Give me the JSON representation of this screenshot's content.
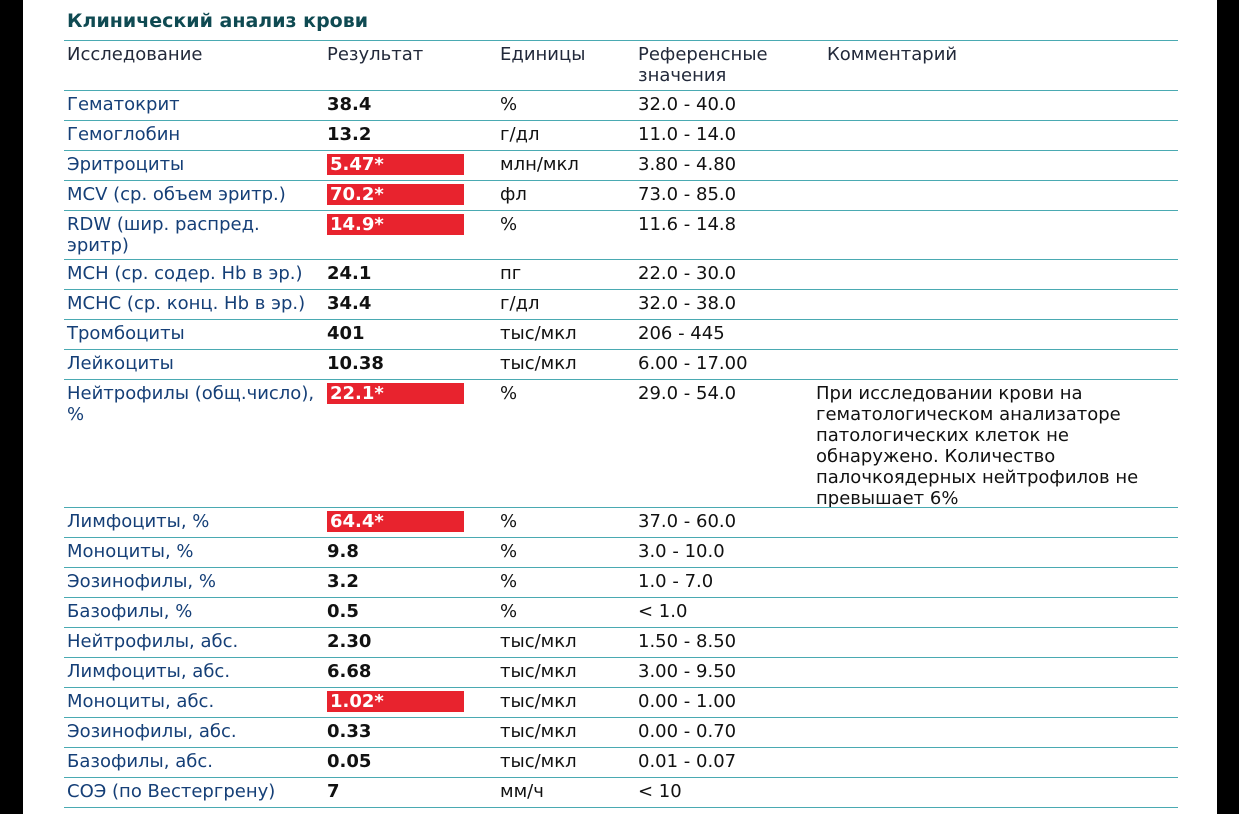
{
  "title": "Клинический анализ крови",
  "headers": {
    "name": "Исследование",
    "result": "Результат",
    "units": "Единицы",
    "ref": "Референсные значения",
    "comment": "Комментарий"
  },
  "rows": [
    {
      "name": "Гематокрит",
      "result": "38.4",
      "units": "%",
      "ref": "32.0 - 40.0",
      "comment": "",
      "flag": false
    },
    {
      "name": "Гемоглобин",
      "result": "13.2",
      "units": "г/дл",
      "ref": "11.0 - 14.0",
      "comment": "",
      "flag": false
    },
    {
      "name": "Эритроциты",
      "result": "5.47*",
      "units": "млн/мкл",
      "ref": "3.80 - 4.80",
      "comment": "",
      "flag": true
    },
    {
      "name": "MCV (ср. объем эритр.)",
      "result": "70.2*",
      "units": "фл",
      "ref": "73.0 - 85.0",
      "comment": "",
      "flag": true
    },
    {
      "name": "RDW (шир. распред. эритр)",
      "result": "14.9*",
      "units": "%",
      "ref": "11.6 - 14.8",
      "comment": "",
      "flag": true
    },
    {
      "name": "MCH (ср. содер. Hb в эр.)",
      "result": "24.1",
      "units": "пг",
      "ref": "22.0 - 30.0",
      "comment": "",
      "flag": false
    },
    {
      "name": "МСНС (ср. конц. Hb в эр.)",
      "result": "34.4",
      "units": "г/дл",
      "ref": "32.0 - 38.0",
      "comment": "",
      "flag": false
    },
    {
      "name": "Тромбоциты",
      "result": "401",
      "units": "тыс/мкл",
      "ref": "206 - 445",
      "comment": "",
      "flag": false
    },
    {
      "name": "Лейкоциты",
      "result": "10.38",
      "units": "тыс/мкл",
      "ref": "6.00 - 17.00",
      "comment": "",
      "flag": false
    },
    {
      "name": "Нейтрофилы (общ.число), %",
      "result": "22.1*",
      "units": "%",
      "ref": "29.0 - 54.0",
      "comment": "При исследовании крови на гематологическом анализаторе патологических клеток не обнаружено. Количество палочкоядерных нейтрофилов не превышает 6%",
      "flag": true
    },
    {
      "name": "Лимфоциты, %",
      "result": "64.4*",
      "units": "%",
      "ref": "37.0 - 60.0",
      "comment": "",
      "flag": true
    },
    {
      "name": "Моноциты, %",
      "result": "9.8",
      "units": "%",
      "ref": "3.0 - 10.0",
      "comment": "",
      "flag": false
    },
    {
      "name": "Эозинофилы, %",
      "result": "3.2",
      "units": "%",
      "ref": "1.0 - 7.0",
      "comment": "",
      "flag": false
    },
    {
      "name": "Базофилы, %",
      "result": "0.5",
      "units": "%",
      "ref": "< 1.0",
      "comment": "",
      "flag": false
    },
    {
      "name": "Нейтрофилы, абс.",
      "result": "2.30",
      "units": "тыс/мкл",
      "ref": "1.50 - 8.50",
      "comment": "",
      "flag": false
    },
    {
      "name": "Лимфоциты, абс.",
      "result": "6.68",
      "units": "тыс/мкл",
      "ref": "3.00 - 9.50",
      "comment": "",
      "flag": false
    },
    {
      "name": "Моноциты, абс.",
      "result": "1.02*",
      "units": "тыс/мкл",
      "ref": "0.00 - 1.00",
      "comment": "",
      "flag": true
    },
    {
      "name": "Эозинофилы, абс.",
      "result": "0.33",
      "units": "тыс/мкл",
      "ref": "0.00 - 0.70",
      "comment": "",
      "flag": false
    },
    {
      "name": "Базофилы, абс.",
      "result": "0.05",
      "units": "тыс/мкл",
      "ref": "0.01 - 0.07",
      "comment": "",
      "flag": false
    },
    {
      "name": "СОЭ (по Вестергрену)",
      "result": "7",
      "units": "мм/ч",
      "ref": "< 10",
      "comment": "",
      "flag": false
    }
  ],
  "colors": {
    "title": "#0f4a52",
    "name_text": "#153f77",
    "rule": "#4aaab2",
    "flag_bg": "#e8232e"
  }
}
